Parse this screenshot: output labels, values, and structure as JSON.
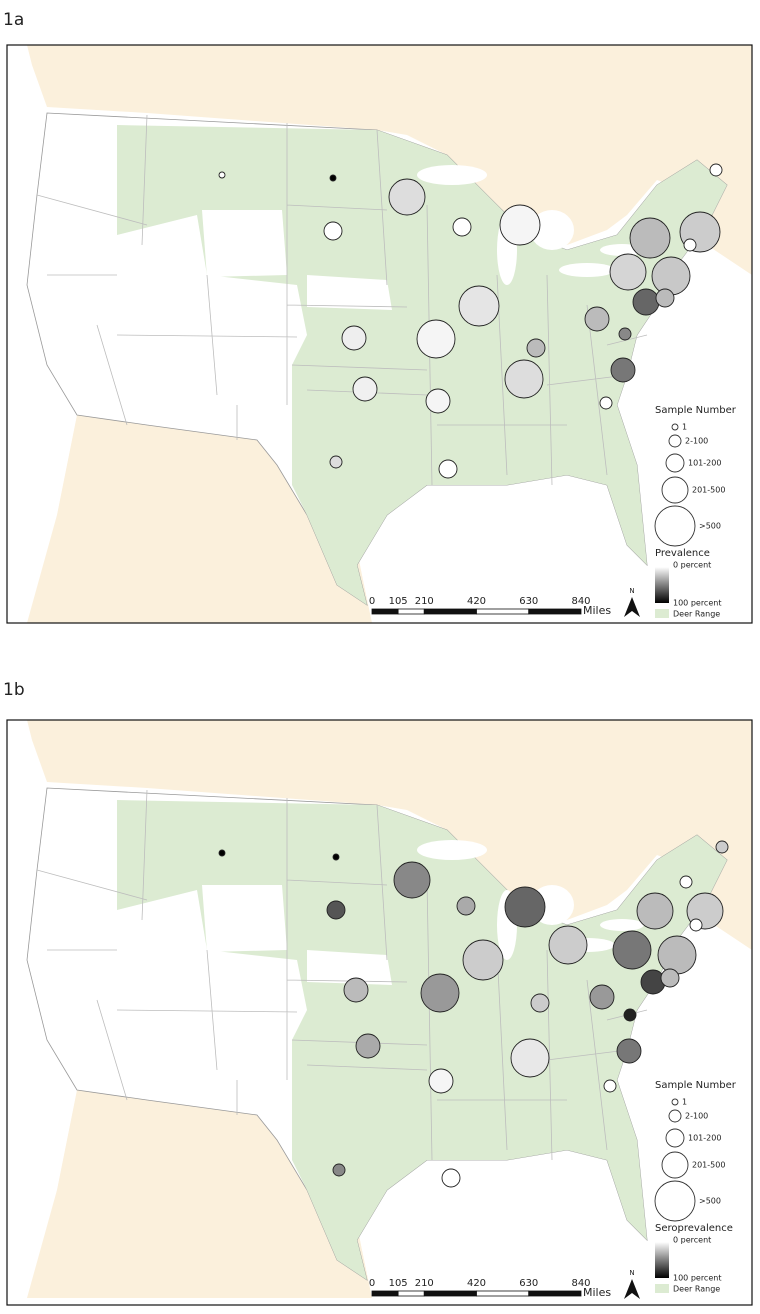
{
  "panels": [
    {
      "label": "1a",
      "legend": {
        "size_title": "Sample Number",
        "size_classes": [
          "1",
          "2-100",
          "101-200",
          "201-500",
          ">500"
        ],
        "color_title": "Prevalence",
        "color_min": "0 percent",
        "color_max": "100 percent",
        "range": "Deer Range"
      },
      "scale": {
        "ticks": [
          0,
          105,
          210,
          420,
          630,
          840
        ],
        "unit": "Miles"
      },
      "north": "N"
    },
    {
      "label": "1b",
      "legend": {
        "size_title": "Sample Number",
        "size_classes": [
          "1",
          "2-100",
          "101-200",
          "201-500",
          ">500"
        ],
        "color_title": "Seroprevalence",
        "color_min": "0 percent",
        "color_max": "100 percent",
        "range": "Deer Range"
      },
      "scale": {
        "ticks": [
          0,
          105,
          210,
          420,
          630,
          840
        ],
        "unit": "Miles"
      },
      "north": "N"
    }
  ]
}
